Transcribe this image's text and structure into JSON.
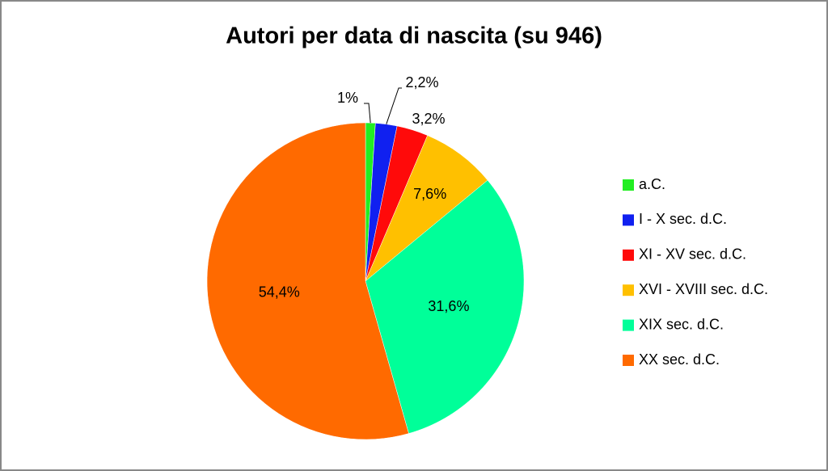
{
  "chart_data": {
    "type": "pie",
    "title": "Autori per data di nascita (su 946)",
    "categories": [
      "a.C.",
      "I - X sec. d.C.",
      "XI - XV sec. d.C.",
      "XVI - XVIII sec. d.C.",
      "XIX sec. d.C.",
      "XX sec. d.C."
    ],
    "values": [
      1,
      2.2,
      3.2,
      7.6,
      31.6,
      54.4
    ],
    "value_labels": [
      "1%",
      "2,2%",
      "3,2%",
      "7,6%",
      "31,6%",
      "54,4%"
    ],
    "colors": [
      "#22ee22",
      "#1020f0",
      "#ff0a0a",
      "#ffc000",
      "#00ff99",
      "#ff6a00"
    ],
    "legend": "right"
  }
}
